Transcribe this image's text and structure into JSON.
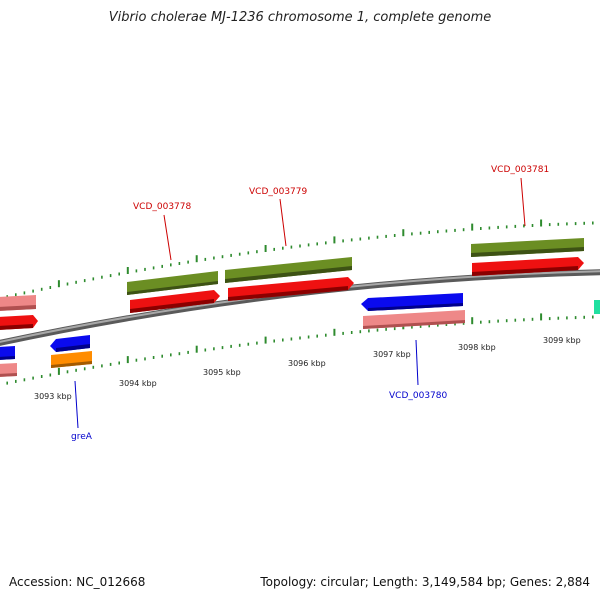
{
  "title": "Vibrio cholerae MJ-1236 chromosome 1, complete genome",
  "footer": {
    "accession": "Accession: NC_012668",
    "topology": "Topology: circular; Length: 3,149,584 bp; Genes: 2,884"
  },
  "colors": {
    "backbone": "#8c8c8c",
    "tick": "#2e8b2e",
    "label_forward": "#cc0000",
    "label_reverse": "#0000cc",
    "cds_forward": "#ee1111",
    "gene_forward": "#6b8e23",
    "cds_reverse": "#0a0aee",
    "gene_reverse": "#ee8888",
    "orange": "#ff8c00",
    "teal": "#20e0a0"
  },
  "scale_labels": [
    "3093 kbp",
    "3094 kbp",
    "3095 kbp",
    "3096 kbp",
    "3097 kbp",
    "3098 kbp",
    "3099 kbp"
  ],
  "gene_labels": [
    {
      "name": "VCD_003778",
      "strand": "forward"
    },
    {
      "name": "VCD_003779",
      "strand": "forward"
    },
    {
      "name": "VCD_003781",
      "strand": "forward"
    },
    {
      "name": "VCD_003780",
      "strand": "reverse"
    },
    {
      "name": "greA",
      "strand": "reverse"
    }
  ]
}
